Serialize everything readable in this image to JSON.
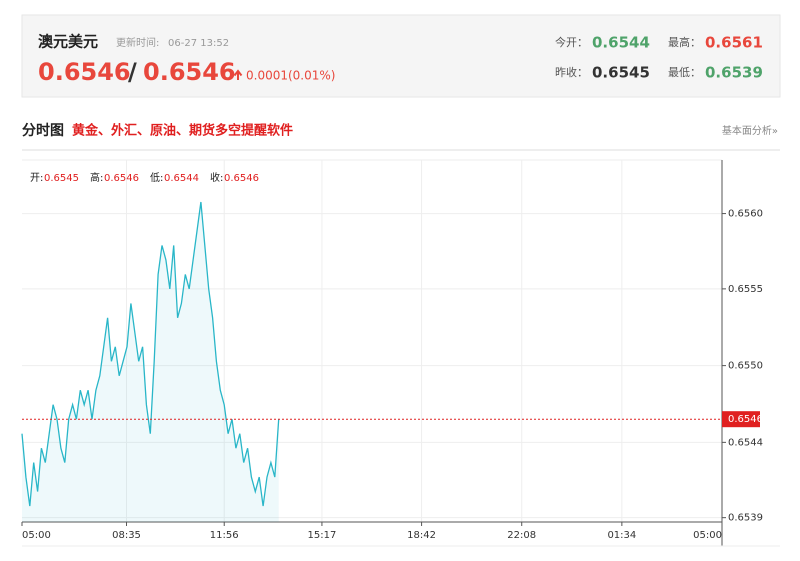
{
  "header": {
    "symbol": "澳元美元",
    "update_label": "更新时间:",
    "update_time": "06-27 13:52",
    "bid": 0.6546,
    "separator": "/",
    "ask": 0.6546,
    "change": "0.0001(0.01%)",
    "stats": [
      {
        "label": "今开：",
        "value": 0.6544,
        "color": "#4fa36a"
      },
      {
        "label": "最高：",
        "value": 0.6561,
        "color": "#e8473c"
      },
      {
        "label": "昨收：",
        "value": 0.6545,
        "color": "#333333"
      },
      {
        "label": "最低：",
        "value": 0.6539,
        "color": "#4fa36a"
      }
    ]
  },
  "section": {
    "title": "分时图",
    "promo": "黄金、外汇、原油、期货多空提醒软件",
    "link": "基本面分析»"
  },
  "chart_data": {
    "type": "line",
    "color": "#29b6c8",
    "ohlc": [
      {
        "label": "开:",
        "value": 0.6545
      },
      {
        "label": "高:",
        "value": 0.6546
      },
      {
        "label": "低:",
        "value": 0.6544
      },
      {
        "label": "收:",
        "value": 0.6546
      }
    ],
    "last_price": 0.6546,
    "x": [
      0,
      8,
      16,
      24,
      32,
      40,
      48,
      56,
      64,
      72,
      80,
      88,
      96,
      104,
      112,
      120,
      128,
      136,
      144,
      152,
      160,
      168,
      176,
      184,
      192,
      200,
      208,
      216,
      224,
      232,
      240,
      248,
      256,
      264,
      272,
      280,
      288,
      296,
      304,
      312,
      320,
      328,
      336,
      344,
      352,
      360,
      368,
      376,
      384,
      392,
      400,
      408,
      416,
      424,
      432,
      440,
      448,
      456,
      464,
      472,
      480,
      488,
      496,
      504,
      512,
      520,
      528
    ],
    "values": [
      0.6545,
      0.6542,
      0.654,
      0.6543,
      0.6541,
      0.6544,
      0.6543,
      0.6545,
      0.6547,
      0.6546,
      0.6544,
      0.6543,
      0.6546,
      0.6547,
      0.6546,
      0.6548,
      0.6547,
      0.6548,
      0.6546,
      0.6548,
      0.6549,
      0.6551,
      0.6553,
      0.655,
      0.6551,
      0.6549,
      0.655,
      0.6551,
      0.6554,
      0.6552,
      0.655,
      0.6551,
      0.6547,
      0.6545,
      0.655,
      0.6556,
      0.6558,
      0.6557,
      0.6555,
      0.6558,
      0.6553,
      0.6554,
      0.6556,
      0.6555,
      0.6557,
      0.6559,
      0.6561,
      0.6558,
      0.6555,
      0.6553,
      0.655,
      0.6548,
      0.6547,
      0.6545,
      0.6546,
      0.6544,
      0.6545,
      0.6543,
      0.6544,
      0.6542,
      0.6541,
      0.6542,
      0.654,
      0.6542,
      0.6543,
      0.6542,
      0.6546
    ],
    "xlim": [
      0,
      1440
    ],
    "xticks": [
      {
        "value": 0,
        "label": "05:00"
      },
      {
        "value": 215,
        "label": "08:35"
      },
      {
        "value": 416,
        "label": "11:56"
      },
      {
        "value": 617,
        "label": "15:17"
      },
      {
        "value": 822,
        "label": "18:42"
      },
      {
        "value": 1028,
        "label": "22:08"
      },
      {
        "value": 1234,
        "label": "01:34"
      },
      {
        "value": 1440,
        "label": "05:00"
      }
    ],
    "ylim": [
      0.65389,
      0.65639
    ],
    "yticks": [
      {
        "value": 0.65602,
        "label": "0.6560"
      },
      {
        "value": 0.6555,
        "label": "0.6555"
      },
      {
        "value": 0.65497,
        "label": "0.6550"
      },
      {
        "value": 0.65444,
        "label": "0.6544"
      },
      {
        "value": 0.65392,
        "label": "0.6539"
      }
    ],
    "grid": true
  }
}
